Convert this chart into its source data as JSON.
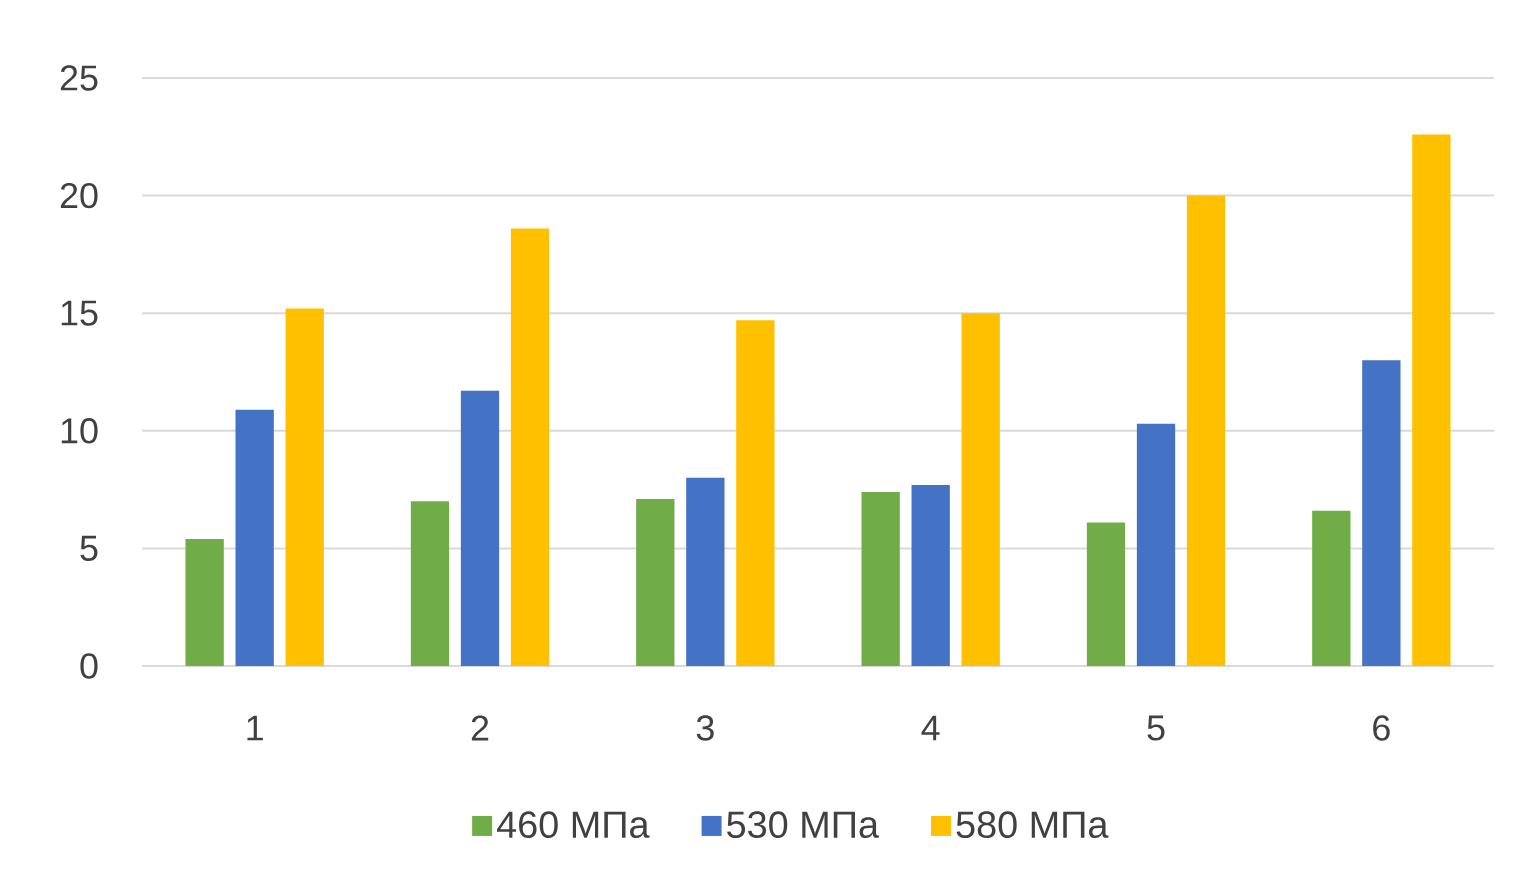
{
  "chart_data": {
    "type": "bar",
    "categories": [
      "1",
      "2",
      "3",
      "4",
      "5",
      "6"
    ],
    "series": [
      {
        "name": "460 МПа",
        "color": "#70ad47",
        "values": [
          5.4,
          7.0,
          7.1,
          7.4,
          6.1,
          6.6
        ]
      },
      {
        "name": "530 МПа",
        "color": "#4472c4",
        "values": [
          10.9,
          11.7,
          8.0,
          7.7,
          10.3,
          13.0
        ]
      },
      {
        "name": "580 МПа",
        "color": "#ffc000",
        "values": [
          15.2,
          18.6,
          14.7,
          15.0,
          20.0,
          22.6
        ]
      }
    ],
    "ylim": [
      0,
      25
    ],
    "yticks": [
      0,
      5,
      10,
      15,
      20,
      25
    ],
    "grid": "y",
    "legend": "bottom"
  }
}
